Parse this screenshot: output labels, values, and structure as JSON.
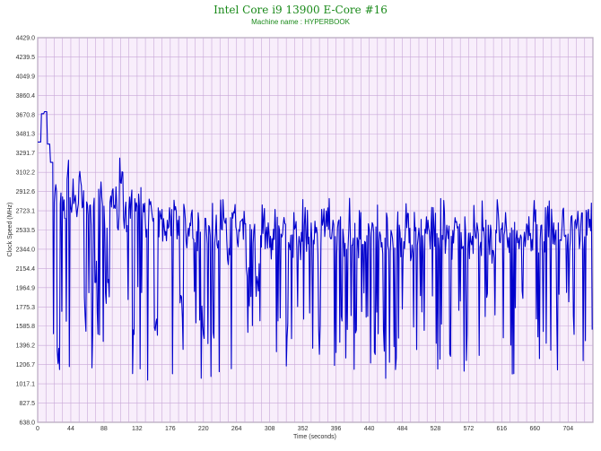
{
  "chart_data": {
    "type": "line",
    "title": "Intel Core i9 13900 E-Core #16",
    "subtitle": "Machine name : HYPERBOOK",
    "xlabel": "Time (seconds)",
    "ylabel": "Clock Speed (MHz)",
    "xlim": [
      0,
      737
    ],
    "ylim": [
      638.0,
      4429.0
    ],
    "xticks": [
      0,
      44,
      88,
      132,
      176,
      220,
      264,
      308,
      352,
      396,
      440,
      484,
      528,
      572,
      616,
      660,
      704
    ],
    "yticks": [
      638.0,
      827.5,
      1017.1,
      1206.7,
      1396.2,
      1585.8,
      1775.3,
      1964.9,
      2154.4,
      2344.0,
      2533.5,
      2723.1,
      2912.6,
      3102.2,
      3291.7,
      3481.3,
      3670.8,
      3860.4,
      4049.9,
      4239.5,
      4429.0
    ],
    "grid": true,
    "colors": {
      "line": "#0000cc",
      "plot_bg": "#f8eefb",
      "grid": "#c8a8d8",
      "title": "#1a8a1a"
    },
    "series": [
      {
        "values": [
          3400,
          3680,
          3700,
          3380,
          3200,
          2900,
          1300,
          2800,
          2700,
          3100,
          2850,
          2900,
          2750,
          3050,
          2800,
          2900,
          2650,
          2850,
          2100,
          2800,
          2950,
          2700,
          1900,
          2900,
          2800,
          2650,
          3100,
          2700,
          2600,
          2800,
          2700,
          2000,
          2800,
          2750,
          2600,
          2700,
          2650,
          1500,
          2600,
          2550,
          2500,
          2650,
          2600,
          2700,
          2600,
          1800,
          2600,
          2500,
          2600,
          2550,
          2400,
          2600,
          1500,
          2500,
          2600,
          2350,
          2550,
          2450,
          2600,
          2500,
          2300,
          2550,
          2600,
          2450,
          2600,
          2550,
          2200,
          2600,
          2500,
          2000,
          2350,
          2600,
          2500,
          2450,
          2400,
          2550,
          2600,
          2450,
          2550,
          2500,
          2400,
          2550,
          2500,
          2350,
          2600,
          2450,
          2500,
          2550,
          2450,
          2350,
          2500,
          2600,
          2400,
          2550,
          2450,
          2500,
          2600,
          2300,
          2500,
          2450,
          2550,
          2400,
          2500,
          2350,
          2550,
          2450,
          2500,
          2600,
          2400,
          2450,
          2550,
          2300,
          2500,
          2450,
          2600,
          2400,
          2500,
          2550,
          2350,
          2450,
          2500,
          2600,
          2400,
          2550,
          2450,
          2500,
          2600,
          2300,
          2550,
          2450,
          2500,
          2400,
          2550,
          2450,
          2500,
          2600,
          2350,
          2500,
          2450,
          2550,
          2400,
          2500,
          2550,
          2450,
          2350,
          2600,
          2500,
          2450,
          2550,
          2400,
          2500,
          2600,
          2450,
          2350,
          2500,
          2550,
          2400,
          2500,
          2450,
          2600,
          2350,
          2500,
          2450,
          2550,
          2400,
          2500,
          2600,
          2450,
          2350,
          2550,
          2500,
          2450,
          2550,
          2400,
          2500,
          2600
        ]
      }
    ]
  }
}
